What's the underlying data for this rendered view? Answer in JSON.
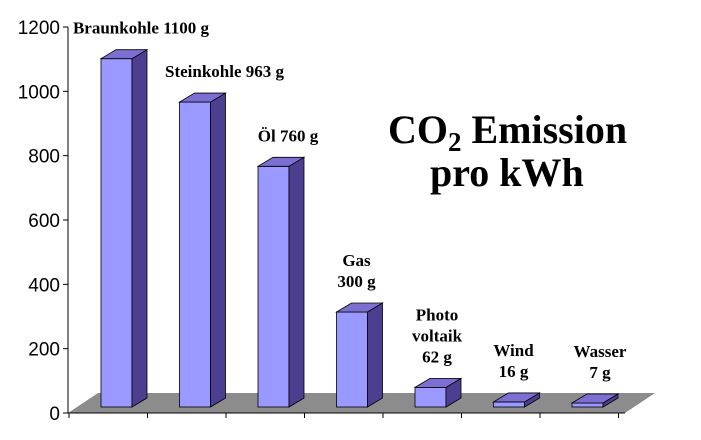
{
  "chart_data": {
    "type": "bar",
    "title": {
      "line1_prefix": "CO",
      "line1_subscript": "2",
      "line1_suffix": " Emission",
      "line2": "pro kWh"
    },
    "ylim": [
      0,
      1200
    ],
    "yticks": [
      0,
      200,
      400,
      600,
      800,
      1000,
      1200
    ],
    "ytick_labels": [
      "0",
      "200",
      "400",
      "600",
      "800",
      "1000",
      "1200"
    ],
    "categories": [
      "Braunkohle",
      "Steinkohle",
      "Öl",
      "Gas",
      "Photovoltaik",
      "Wind",
      "Wasser"
    ],
    "values": [
      1100,
      963,
      760,
      300,
      62,
      16,
      7
    ],
    "bar_labels": [
      [
        "Braunkohle 1100 g"
      ],
      [
        "Steinkohle 963 g"
      ],
      [
        "Öl 760 g"
      ],
      [
        "Gas",
        "300 g"
      ],
      [
        "Photo",
        "voltaik",
        "62 g"
      ],
      [
        "Wind",
        "16 g"
      ],
      [
        "Wasser",
        "7 g"
      ]
    ],
    "colors": {
      "bar_front": "#9999ff",
      "bar_side": "#4c3f8f",
      "bar_top": "#7b6fd1",
      "floor": "#8c8c8c",
      "axis": "#000000"
    },
    "grid": false
  }
}
